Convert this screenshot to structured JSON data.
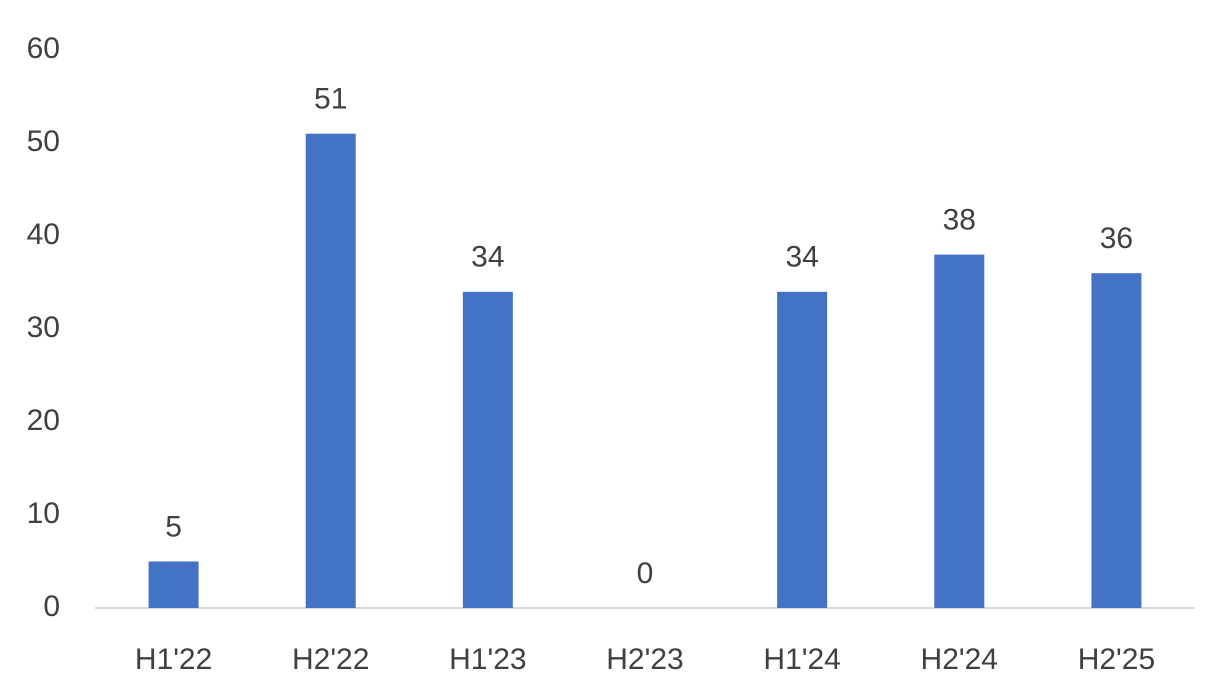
{
  "chart_data": {
    "type": "bar",
    "categories": [
      "H1'22",
      "H2'22",
      "H1'23",
      "H2'23",
      "H1'24",
      "H2'24",
      "H2'25"
    ],
    "values": [
      5,
      51,
      34,
      0,
      34,
      38,
      36
    ],
    "color": "#4472c4",
    "ylim": [
      0,
      60
    ],
    "yticks": [
      0,
      10,
      20,
      30,
      40,
      50,
      60
    ],
    "grid": false
  }
}
